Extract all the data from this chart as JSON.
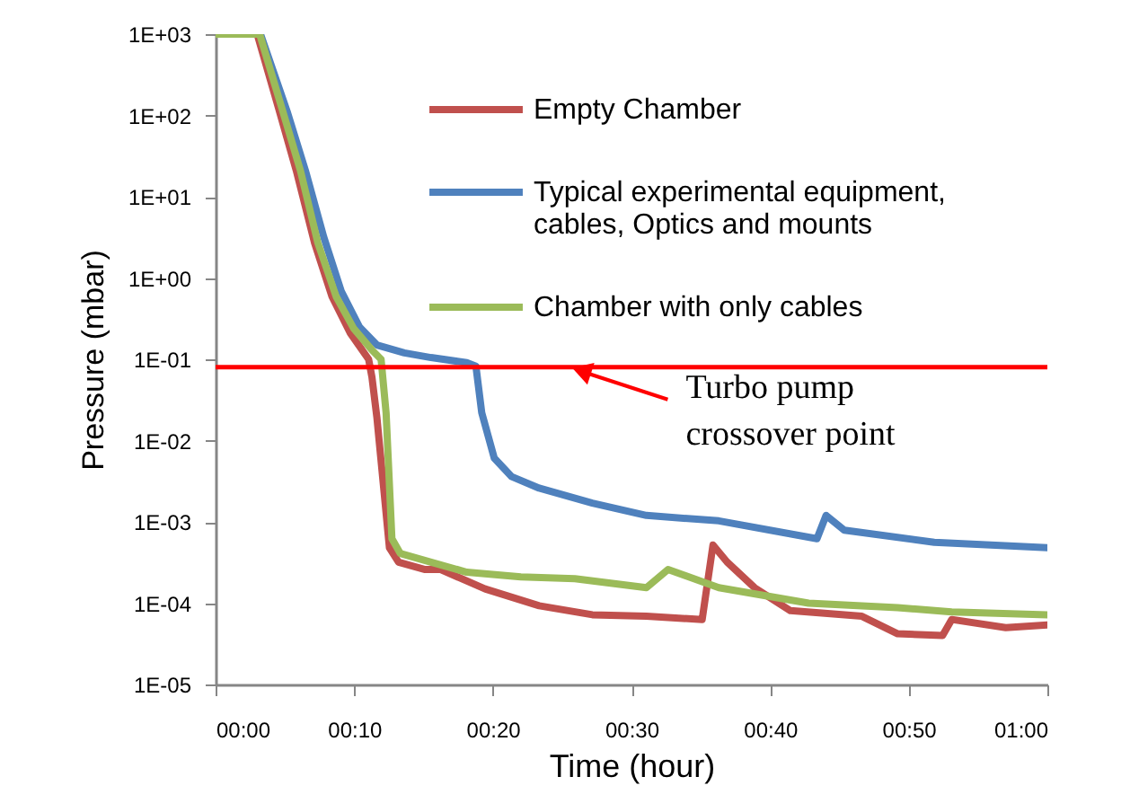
{
  "chart_data": {
    "type": "line",
    "xlabel": "Time (hour)",
    "ylabel": "Pressure (mbar)",
    "log": "y",
    "legend": "top right",
    "xlim": [
      0,
      1
    ],
    "xticks": [
      {
        "value": 0,
        "label": "00:00"
      },
      {
        "value": 0.1667,
        "label": "00:10"
      },
      {
        "value": 0.3333,
        "label": "00:20"
      },
      {
        "value": 0.5,
        "label": "00:30"
      },
      {
        "value": 0.6667,
        "label": "00:40"
      },
      {
        "value": 0.8333,
        "label": "00:50"
      },
      {
        "value": 1,
        "label": "01:00"
      }
    ],
    "ylim": [
      1e-05,
      1000
    ],
    "yticks": [
      {
        "value": 1e-05,
        "label": "1E-05"
      },
      {
        "value": 0.0001,
        "label": "1E-04"
      },
      {
        "value": 0.001,
        "label": "1E-03"
      },
      {
        "value": 0.01,
        "label": "1E-02"
      },
      {
        "value": 0.1,
        "label": "1E-01"
      },
      {
        "value": 1,
        "label": "1E+00"
      },
      {
        "value": 10,
        "label": "1E+01"
      },
      {
        "value": 100,
        "label": "1E+02"
      },
      {
        "value": 1000,
        "label": "1E+03"
      }
    ],
    "series": [
      {
        "name": "Empty Chamber",
        "color": "#c0504d",
        "x": [
          0,
          0.05,
          0.076,
          0.097,
          0.119,
          0.14,
          0.162,
          0.184,
          0.188,
          0.194,
          0.209,
          0.22,
          0.251,
          0.27,
          0.324,
          0.389,
          0.453,
          0.518,
          0.585,
          0.598,
          0.615,
          0.648,
          0.691,
          0.777,
          0.82,
          0.874,
          0.885,
          0.95,
          1
        ],
        "values": [
          1000,
          1000,
          120,
          21,
          2.7,
          0.59,
          0.21,
          0.1,
          0.06,
          0.019,
          0.00048,
          0.00032,
          0.00026,
          0.00026,
          0.00015,
          9.3e-05,
          7.2e-05,
          6.9e-05,
          6.3e-05,
          0.00052,
          0.00032,
          0.000155,
          8.1e-05,
          6.9e-05,
          4.2e-05,
          4e-05,
          6.3e-05,
          5e-05,
          5.4e-05
        ]
      },
      {
        "name": "Typical experimental equipment,\ncables, Optics and mounts",
        "color": "#4f81bd",
        "x": [
          0,
          0.054,
          0.086,
          0.108,
          0.13,
          0.151,
          0.173,
          0.194,
          0.227,
          0.259,
          0.302,
          0.313,
          0.32,
          0.335,
          0.356,
          0.389,
          0.453,
          0.518,
          0.605,
          0.723,
          0.734,
          0.756,
          0.864,
          1
        ],
        "values": [
          1000,
          1000,
          112,
          21,
          3.2,
          0.69,
          0.25,
          0.15,
          0.12,
          0.105,
          0.091,
          0.082,
          0.022,
          0.0061,
          0.0036,
          0.0026,
          0.0017,
          0.0012,
          0.00103,
          0.00062,
          0.0012,
          0.00079,
          0.00056,
          0.00048
        ]
      },
      {
        "name": "Chamber with only cables",
        "color": "#9bbb59",
        "x": [
          0,
          0.053,
          0.08,
          0.102,
          0.123,
          0.145,
          0.166,
          0.188,
          0.199,
          0.205,
          0.212,
          0.222,
          0.259,
          0.302,
          0.367,
          0.432,
          0.518,
          0.544,
          0.605,
          0.713,
          0.82,
          0.885,
          1
        ],
        "values": [
          1000,
          1000,
          120,
          21,
          2.7,
          0.59,
          0.24,
          0.13,
          0.1,
          0.022,
          0.00062,
          0.00041,
          0.00032,
          0.00024,
          0.00021,
          0.0002,
          0.000155,
          0.00026,
          0.000155,
          0.0001,
          8.8e-05,
          7.8e-05,
          7.2e-05
        ]
      }
    ],
    "ref_lines": [
      {
        "axis": "y",
        "value": 0.08,
        "color": "#ff0000"
      }
    ],
    "annotations": [
      {
        "text": "Turbo pump\ncrossover point",
        "x": 0.427,
        "y": 0.08
      }
    ]
  }
}
